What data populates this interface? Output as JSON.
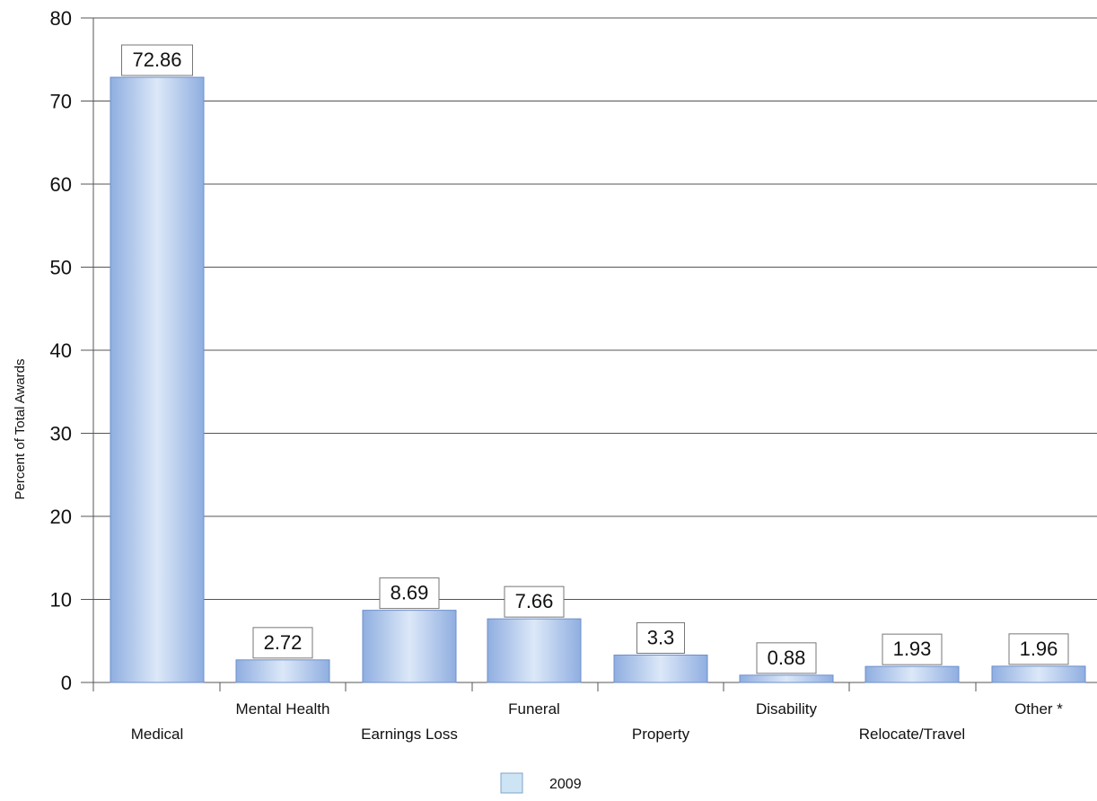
{
  "chart_data": {
    "type": "bar",
    "ylabel": "Percent of Total Awards",
    "xlabel": "",
    "ylim": [
      0,
      80
    ],
    "yticks": [
      0,
      10,
      20,
      30,
      40,
      50,
      60,
      70,
      80
    ],
    "grid": true,
    "legend_position": "bottom-center",
    "categories": [
      "Medical",
      "Mental Health",
      "Earnings Loss",
      "Funeral",
      "Property",
      "Disability",
      "Relocate/Travel",
      "Other *"
    ],
    "series": [
      {
        "name": "2009",
        "values": [
          72.86,
          2.72,
          8.69,
          7.66,
          3.3,
          0.88,
          1.93,
          1.96
        ],
        "data_labels": [
          "72.86",
          "2.72",
          "8.69",
          "7.66",
          "3.3",
          "0.88",
          "1.93",
          "1.96"
        ]
      }
    ],
    "colors": {
      "bar_light": "#dce8f8",
      "bar_mid": "#a9c1e8",
      "bar_dark": "#7f9ed6",
      "legend_swatch": "#cde4f5",
      "axis": "#555555",
      "grid": "#555555"
    }
  }
}
